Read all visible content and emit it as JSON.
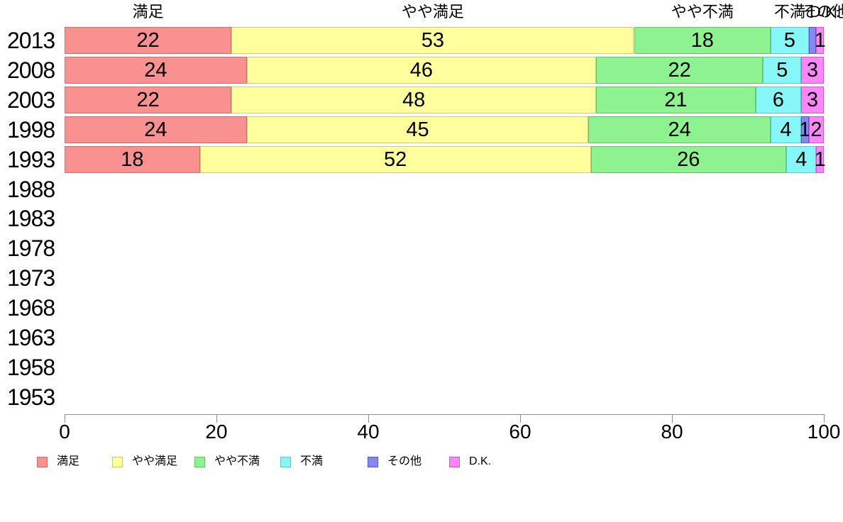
{
  "chart_data": {
    "type": "bar",
    "subtype": "horizontal-stacked-percentage",
    "title": "",
    "xlabel": "",
    "ylabel": "",
    "x_axis": {
      "min": 0,
      "max": 100,
      "ticks": [
        0,
        20,
        40,
        60,
        80,
        100
      ]
    },
    "grid": false,
    "legend_position": "bottom",
    "series_names": [
      "満足",
      "やや満足",
      "やや不満",
      "不満",
      "その他",
      "D.K."
    ],
    "column_headers": [
      "満足",
      "やや満足",
      "やや不満",
      "不満",
      "その他",
      "D.K."
    ],
    "colors": {
      "fills": [
        "#FA9191",
        "#FFFF9D",
        "#8FF291",
        "#87F6F6",
        "#8787F0",
        "#FA87FA"
      ],
      "borders": [
        "#C9706F",
        "#CBCB77",
        "#66C468",
        "#5CC6C8",
        "#5656C6",
        "#C95EC9"
      ],
      "axis": "#8f8f8f",
      "text": "#000000"
    },
    "categories": [
      "2013",
      "2008",
      "2003",
      "1998",
      "1993",
      "1988",
      "1983",
      "1978",
      "1973",
      "1968",
      "1963",
      "1958",
      "1953"
    ],
    "rows": [
      {
        "year": "2013",
        "values": [
          22,
          53,
          18,
          5,
          1,
          1
        ],
        "labels": [
          "22",
          "53",
          "18",
          "5",
          "",
          "1"
        ]
      },
      {
        "year": "2008",
        "values": [
          24,
          46,
          22,
          5,
          0,
          3
        ],
        "labels": [
          "24",
          "46",
          "22",
          "5",
          "",
          "3"
        ]
      },
      {
        "year": "2003",
        "values": [
          22,
          48,
          21,
          6,
          0,
          3
        ],
        "labels": [
          "22",
          "48",
          "21",
          "6",
          "",
          "3"
        ]
      },
      {
        "year": "1998",
        "values": [
          24,
          45,
          24,
          4,
          1,
          2
        ],
        "labels": [
          "24",
          "45",
          "24",
          "4",
          "1",
          "2"
        ]
      },
      {
        "year": "1993",
        "values": [
          18,
          52,
          26,
          4,
          0,
          1
        ],
        "labels": [
          "18",
          "52",
          "26",
          "4",
          "",
          "1"
        ]
      },
      {
        "year": "1988",
        "values": [],
        "labels": []
      },
      {
        "year": "1983",
        "values": [],
        "labels": []
      },
      {
        "year": "1978",
        "values": [],
        "labels": []
      },
      {
        "year": "1973",
        "values": [],
        "labels": []
      },
      {
        "year": "1968",
        "values": [],
        "labels": []
      },
      {
        "year": "1963",
        "values": [],
        "labels": []
      },
      {
        "year": "1958",
        "values": [],
        "labels": []
      },
      {
        "year": "1953",
        "values": [],
        "labels": []
      }
    ],
    "legend": [
      {
        "label": "満足"
      },
      {
        "label": "やや満足"
      },
      {
        "label": "やや不満"
      },
      {
        "label": "不満"
      },
      {
        "label": "その他"
      },
      {
        "label": "D.K."
      }
    ]
  }
}
